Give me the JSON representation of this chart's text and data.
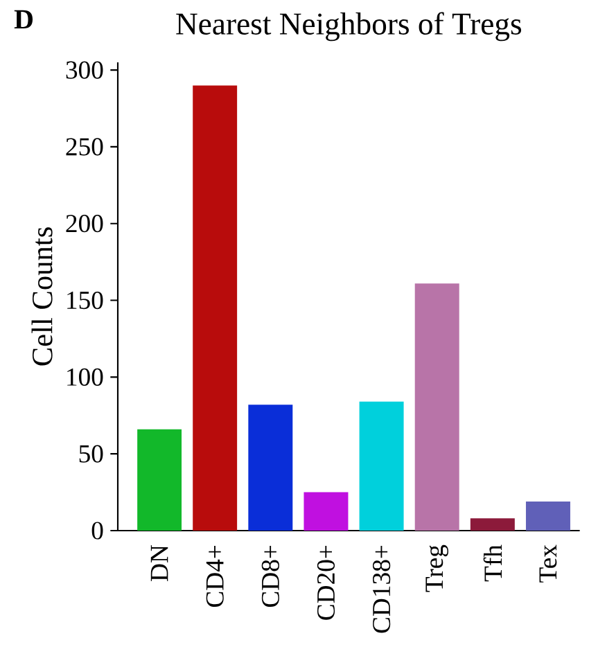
{
  "chart_data": {
    "type": "bar",
    "title": "Nearest Neighbors of Tregs",
    "ylabel": "Cell Counts",
    "annotations": [
      "**D**"
    ],
    "categories": [
      "DN",
      "CD4+",
      "CD8+",
      "CD20+",
      "CD138+",
      "Treg",
      "Tfh",
      "Tex"
    ],
    "values": [
      66,
      290,
      82,
      25,
      84,
      161,
      8,
      19
    ],
    "colors": [
      "#12b82a",
      "#b80c0c",
      "#0a2ed8",
      "#c010e0",
      "#00d0dc",
      "#b874a8",
      "#8c1a3a",
      "#6060b8"
    ],
    "ylim": [
      0,
      305
    ],
    "yticks": [
      0,
      50,
      100,
      150,
      200,
      250,
      300
    ],
    "grid": false
  }
}
